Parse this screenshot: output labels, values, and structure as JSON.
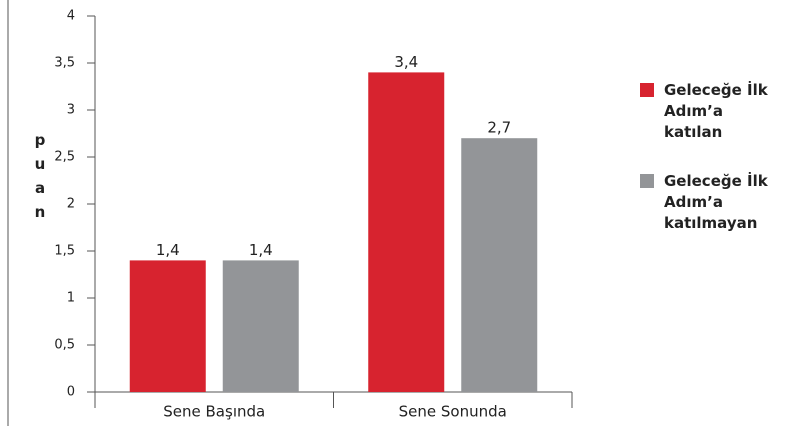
{
  "chart_data": {
    "type": "bar",
    "y_label": "puan",
    "categories": [
      "Sene Başında",
      "Sene Sonunda"
    ],
    "series": [
      {
        "name": "Geleceğe İlk Adım’a katılan",
        "color": "#d7232f",
        "values": [
          1.4,
          3.4
        ],
        "value_labels": [
          "1,4",
          "3,4"
        ]
      },
      {
        "name": "Geleceğe İlk Adım’a katılmayan",
        "color": "#939598",
        "values": [
          1.4,
          2.7
        ],
        "value_labels": [
          "1,4",
          "2,7"
        ]
      }
    ],
    "ylim": [
      0,
      4
    ],
    "yticks": [
      0,
      {
        "value": 0.5,
        "label": "0,5"
      },
      1,
      {
        "value": 1.5,
        "label": "1,5"
      },
      2,
      {
        "value": 2.5,
        "label": "2,5"
      },
      3,
      {
        "value": 3.5,
        "label": "3,5"
      },
      4
    ],
    "legend": "right"
  }
}
